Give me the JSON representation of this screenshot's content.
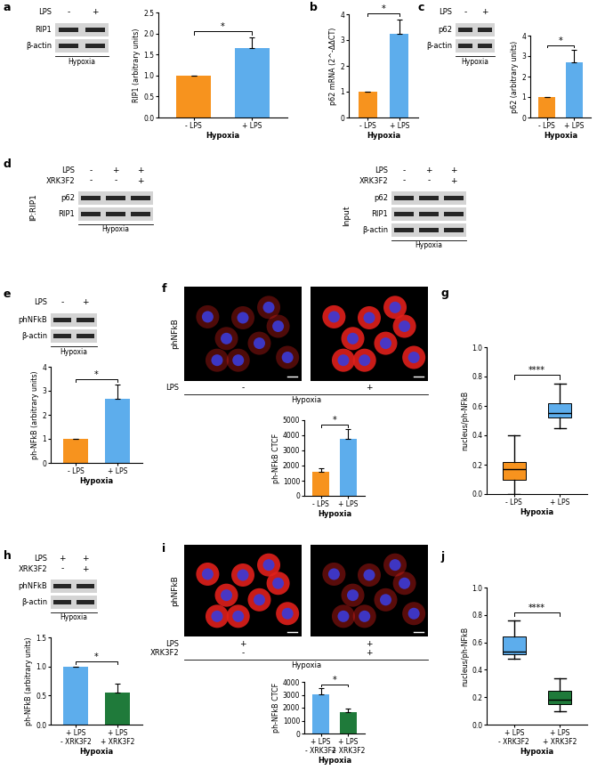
{
  "panel_labels": [
    "a",
    "b",
    "c",
    "d",
    "e",
    "f",
    "g",
    "h",
    "i",
    "j"
  ],
  "blots": [
    {
      "conditions": [
        {
          "name": "LPS",
          "signs": [
            "-",
            "+"
          ]
        }
      ],
      "bands": [
        "RIP1",
        "β-actin"
      ],
      "footer": "Hypoxia"
    },
    {
      "conditions": [
        {
          "name": "LPS",
          "signs": [
            "-",
            "+"
          ]
        }
      ],
      "bands": [
        "p62",
        "β-actin"
      ],
      "footer": "Hypoxia"
    },
    {
      "group": "IP:RIP1",
      "conditions": [
        {
          "name": "LPS",
          "signs": [
            "-",
            "+",
            "+"
          ]
        },
        {
          "name": "XRK3F2",
          "signs": [
            "-",
            "-",
            "+"
          ]
        }
      ],
      "bands": [
        "p62",
        "RIP1"
      ],
      "footer": "Hypoxia"
    },
    {
      "group": "Input",
      "conditions": [
        {
          "name": "LPS",
          "signs": [
            "-",
            "+",
            "+"
          ]
        },
        {
          "name": "XRK3F2",
          "signs": [
            "-",
            "-",
            "+"
          ]
        }
      ],
      "bands": [
        "p62",
        "RIP1",
        "β-actin"
      ],
      "footer": "Hypoxia"
    },
    {
      "conditions": [
        {
          "name": "LPS",
          "signs": [
            "-",
            "+"
          ]
        }
      ],
      "bands": [
        "phNFkB",
        "β-actin"
      ],
      "footer": "Hypoxia"
    },
    {
      "conditions": [
        {
          "name": "LPS",
          "signs": [
            "+",
            "+"
          ]
        },
        {
          "name": "XRK3F2",
          "signs": [
            "-",
            "+"
          ]
        }
      ],
      "bands": [
        "phNFkB",
        "β-actin"
      ],
      "footer": "Hypoxia"
    }
  ],
  "images": [
    {
      "stain": "phNFkB",
      "conditions": [
        {
          "name": "LPS",
          "signs": [
            "-",
            "+"
          ]
        }
      ],
      "footer": "Hypoxia"
    },
    {
      "stain": "phNFkB",
      "conditions": [
        {
          "name": "LPS",
          "signs": [
            "+",
            "+"
          ]
        },
        {
          "name": "XRK3F2",
          "signs": [
            "-",
            "+"
          ]
        }
      ],
      "footer": "Hypoxia"
    }
  ],
  "chart_data": [
    {
      "type": "bar",
      "categories": [
        "- LPS",
        "+ LPS"
      ],
      "values": [
        1.0,
        1.65
      ],
      "errors": [
        0,
        0.25
      ],
      "colors": [
        "#F7931E",
        "#5DADEC"
      ],
      "ylabel": "RIP1 (arbitrary units)",
      "xlabel": "Hypoxia",
      "ylim": [
        0,
        2.5
      ],
      "yticks": [
        {
          "value": 0,
          "label": "0.0"
        },
        {
          "value": 0.5,
          "label": "0.5"
        },
        {
          "value": 1.0,
          "label": "1.0"
        },
        {
          "value": 1.5,
          "label": "1.5"
        },
        {
          "value": 2.0,
          "label": "2.0"
        },
        {
          "value": 2.5,
          "label": "2.5"
        }
      ],
      "annotation": "*"
    },
    {
      "type": "bar",
      "categories": [
        "- LPS",
        "+ LPS"
      ],
      "values": [
        1.0,
        3.25
      ],
      "errors": [
        0,
        0.55
      ],
      "colors": [
        "#F7931E",
        "#5DADEC"
      ],
      "ylabel": "p62 mRNA (2^-ΔΔCT)",
      "xlabel": "Hypoxia",
      "ylim": [
        0,
        4
      ],
      "yticks": [
        0,
        1,
        2,
        3,
        4
      ],
      "annotation": "*"
    },
    {
      "type": "bar",
      "categories": [
        "- LPS",
        "+ LPS"
      ],
      "values": [
        1.0,
        2.7
      ],
      "errors": [
        0,
        0.6
      ],
      "colors": [
        "#F7931E",
        "#5DADEC"
      ],
      "ylabel": "p62 (arbitrary units)",
      "xlabel": "Hypoxia",
      "ylim": [
        0,
        4
      ],
      "yticks": [
        0,
        1,
        2,
        3,
        4
      ],
      "annotation": "*"
    },
    {
      "type": "bar",
      "categories": [
        "- LPS",
        "+ LPS"
      ],
      "values": [
        1.0,
        2.65
      ],
      "errors": [
        0,
        0.6
      ],
      "colors": [
        "#F7931E",
        "#5DADEC"
      ],
      "ylabel": "ph-NFkB (arbitrary units)",
      "xlabel": "Hypoxia",
      "ylim": [
        0,
        4
      ],
      "yticks": [
        0,
        1,
        2,
        3,
        4
      ],
      "annotation": "*"
    },
    {
      "type": "bar",
      "categories": [
        "- LPS",
        "+ LPS"
      ],
      "values": [
        1600,
        3750
      ],
      "errors": [
        250,
        650
      ],
      "colors": [
        "#F7931E",
        "#5DADEC"
      ],
      "ylabel": "ph-NFkB CTCF",
      "xlabel": "Hypoxia",
      "ylim": [
        0,
        5000
      ],
      "yticks": [
        0,
        1000,
        2000,
        3000,
        4000,
        5000
      ],
      "annotation": "*"
    },
    {
      "type": "box",
      "categories": [
        "- LPS",
        "+ LPS"
      ],
      "boxes": [
        {
          "whislo": 0.0,
          "q1": 0.1,
          "med": 0.17,
          "q3": 0.22,
          "whishi": 0.4
        },
        {
          "whislo": 0.45,
          "q1": 0.52,
          "med": 0.55,
          "q3": 0.62,
          "whishi": 0.75
        }
      ],
      "colors": [
        "#F7931E",
        "#5DADEC"
      ],
      "ylabel": "nucleus/ph-NFkB",
      "xlabel": "Hypoxia",
      "ylim": [
        0,
        1.0
      ],
      "yticks": [
        {
          "value": 0,
          "label": "0.0"
        },
        {
          "value": 0.2,
          "label": "0.2"
        },
        {
          "value": 0.4,
          "label": "0.4"
        },
        {
          "value": 0.6,
          "label": "0.6"
        },
        {
          "value": 0.8,
          "label": "0.8"
        },
        {
          "value": 1.0,
          "label": "1.0"
        }
      ],
      "annotation": "****"
    },
    {
      "type": "bar",
      "categories": [
        "+ LPS\n- XRK3F2",
        "+ LPS\n+ XRK3F2"
      ],
      "values": [
        1.0,
        0.55
      ],
      "errors": [
        0,
        0.15
      ],
      "colors": [
        "#5DADEC",
        "#1F7A3A"
      ],
      "ylabel": "ph-NFkB (arbitrary units)",
      "xlabel": "Hypoxia",
      "ylim": [
        0,
        1.5
      ],
      "yticks": [
        {
          "value": 0,
          "label": "0.0"
        },
        {
          "value": 0.5,
          "label": "0.5"
        },
        {
          "value": 1.0,
          "label": "1.0"
        },
        {
          "value": 1.5,
          "label": "1.5"
        }
      ],
      "annotation": "*"
    },
    {
      "type": "bar",
      "categories": [
        "+ LPS\n- XRK3F2",
        "+ LPS\n+ XRK3F2"
      ],
      "values": [
        3050,
        1650
      ],
      "errors": [
        500,
        250
      ],
      "colors": [
        "#5DADEC",
        "#1F7A3A"
      ],
      "ylabel": "ph-NFkB CTCF",
      "xlabel": "Hypoxia",
      "ylim": [
        0,
        4000
      ],
      "yticks": [
        0,
        1000,
        2000,
        3000,
        4000
      ],
      "annotation": "*"
    },
    {
      "type": "box",
      "categories": [
        "+ LPS\n- XRK3F2",
        "+ LPS\n+ XRK3F2"
      ],
      "boxes": [
        {
          "whislo": 0.48,
          "q1": 0.51,
          "med": 0.53,
          "q3": 0.64,
          "whishi": 0.76
        },
        {
          "whislo": 0.1,
          "q1": 0.15,
          "med": 0.18,
          "q3": 0.25,
          "whishi": 0.34
        }
      ],
      "colors": [
        "#5DADEC",
        "#1F7A3A"
      ],
      "ylabel": "nucleus/ph-NFkB",
      "xlabel": "Hypoxia",
      "ylim": [
        0,
        1.0
      ],
      "yticks": [
        {
          "value": 0,
          "label": "0.0"
        },
        {
          "value": 0.2,
          "label": "0.2"
        },
        {
          "value": 0.4,
          "label": "0.4"
        },
        {
          "value": 0.6,
          "label": "0.6"
        },
        {
          "value": 0.8,
          "label": "0.8"
        },
        {
          "value": 1.0,
          "label": "1.0"
        }
      ],
      "annotation": "****"
    }
  ]
}
